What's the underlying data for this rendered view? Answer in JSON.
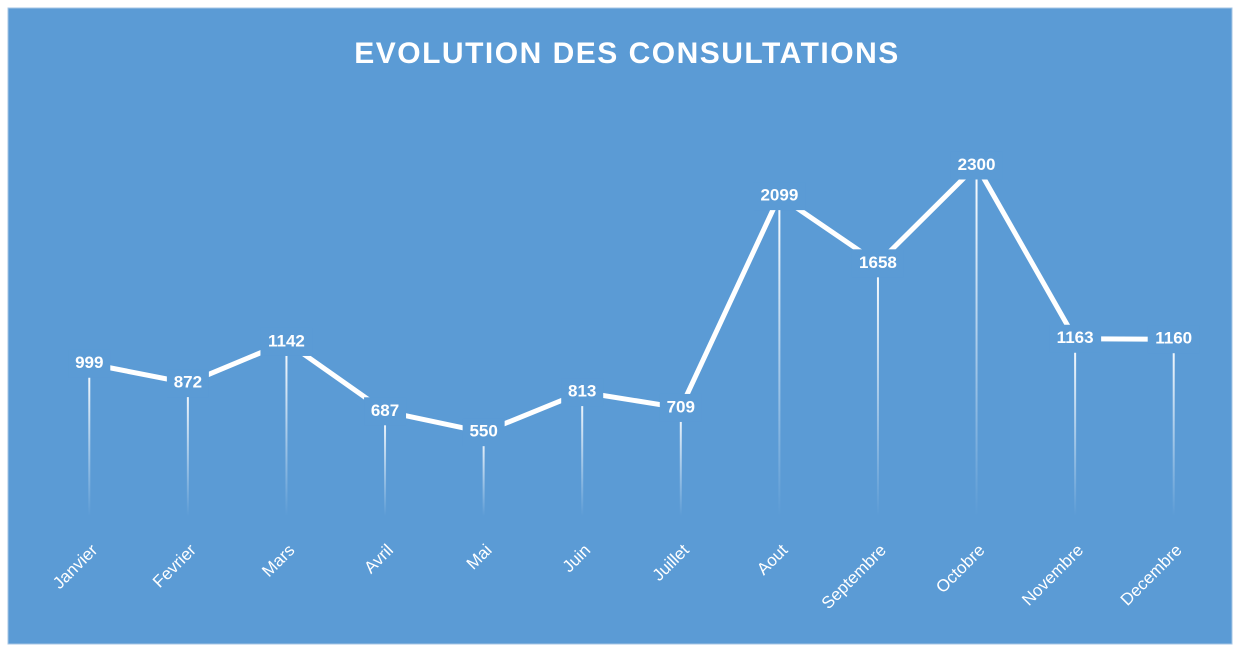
{
  "chart_data": {
    "type": "line",
    "title": "EVOLUTION DES CONSULTATIONS",
    "categories": [
      "Janvier",
      "Fevrier",
      "Mars",
      "Avril",
      "Mai",
      "Juin",
      "Juillet",
      "Aout",
      "Septembre",
      "Octobre",
      "Novembre",
      "Decembre"
    ],
    "values": [
      999,
      872,
      1142,
      687,
      550,
      813,
      709,
      2099,
      1658,
      2300,
      1163,
      1160
    ],
    "color": "#ffffff",
    "background": "#5b9bd5",
    "ylim": [
      0,
      2500
    ]
  }
}
